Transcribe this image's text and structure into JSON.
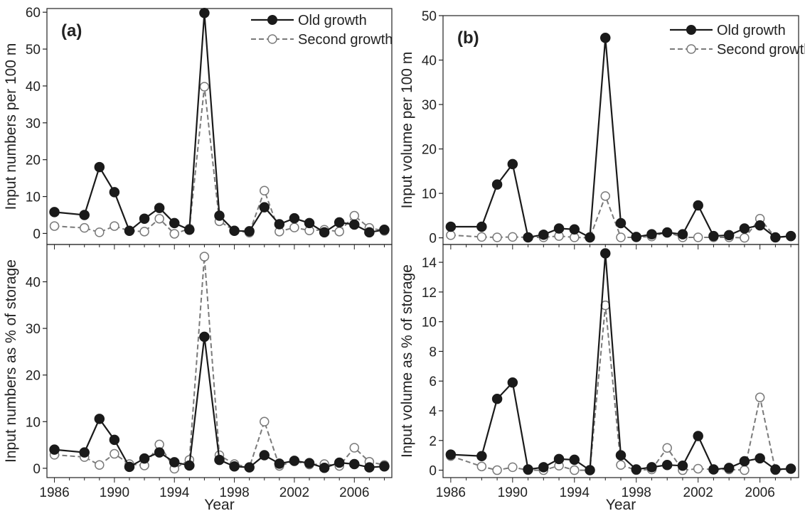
{
  "legend": {
    "old": "Old growth",
    "second": "Second growth"
  },
  "colors": {
    "old": "#1a1a1a",
    "second": "#7a7a7a",
    "second_fill": "#ffffff",
    "axis": "#222222"
  },
  "chart_data": [
    {
      "type": "line",
      "panel_label": "(a)",
      "ylabel": "Input numbers per 100 m",
      "xlabel": "",
      "xlim": [
        1985.5,
        2008.5
      ],
      "ylim": [
        -3,
        61
      ],
      "yticks": [
        0,
        10,
        20,
        30,
        40,
        50,
        60
      ],
      "xticks": [
        1986,
        1990,
        1994,
        1998,
        2002,
        2006
      ],
      "legend_position": "top-right",
      "series": [
        {
          "name": "Old growth",
          "x": [
            1986,
            1988,
            1989,
            1990,
            1991,
            1992,
            1993,
            1994,
            1995,
            1996,
            1997,
            1998,
            1999,
            2000,
            2001,
            2002,
            2003,
            2004,
            2005,
            2006,
            2007,
            2008
          ],
          "y": [
            5.8,
            5.0,
            18.0,
            11.2,
            0.7,
            4.0,
            6.9,
            2.8,
            1.0,
            59.8,
            4.8,
            0.7,
            0.6,
            7.1,
            2.5,
            4.1,
            2.8,
            0.3,
            3.0,
            2.4,
            0.3,
            1.0
          ]
        },
        {
          "name": "Second growth",
          "x": [
            1986,
            1988,
            1989,
            1990,
            1991,
            1992,
            1993,
            1994,
            1995,
            1996,
            1997,
            1998,
            1999,
            2000,
            2001,
            2002,
            2003,
            2004,
            2005,
            2006,
            2007,
            2008
          ],
          "y": [
            2.0,
            1.5,
            0.3,
            2.0,
            0.7,
            0.5,
            4.0,
            -0.1,
            1.3,
            39.8,
            3.3,
            0.8,
            0.2,
            11.6,
            0.5,
            1.6,
            0.8,
            1.0,
            0.5,
            4.8,
            1.5,
            0.7
          ]
        }
      ]
    },
    {
      "type": "line",
      "panel_label": "(b)",
      "ylabel": "Input volume per 100 m",
      "xlabel": "",
      "xlim": [
        1985.5,
        2008.5
      ],
      "ylim": [
        -1.5,
        50
      ],
      "yticks": [
        0,
        10,
        20,
        30,
        40,
        50
      ],
      "xticks": [
        1986,
        1990,
        1994,
        1998,
        2002,
        2006
      ],
      "legend_position": "top-right",
      "series": [
        {
          "name": "Old growth",
          "x": [
            1986,
            1988,
            1989,
            1990,
            1991,
            1992,
            1993,
            1994,
            1995,
            1996,
            1997,
            1998,
            1999,
            2000,
            2001,
            2002,
            2003,
            2004,
            2005,
            2006,
            2007,
            2008
          ],
          "y": [
            2.5,
            2.5,
            12.0,
            16.6,
            0.1,
            0.7,
            2.1,
            1.9,
            0.1,
            45.0,
            3.3,
            0.2,
            0.8,
            1.2,
            0.8,
            7.3,
            0.4,
            0.6,
            2.1,
            2.8,
            0.1,
            0.4
          ]
        },
        {
          "name": "Second growth",
          "x": [
            1986,
            1988,
            1989,
            1990,
            1991,
            1992,
            1993,
            1994,
            1995,
            1996,
            1997,
            1998,
            1999,
            2000,
            2001,
            2002,
            2003,
            2004,
            2005,
            2006,
            2007,
            2008
          ],
          "y": [
            0.6,
            0.2,
            0.1,
            0.2,
            0.1,
            0.1,
            0.4,
            0.1,
            0.0,
            9.4,
            0.1,
            0.1,
            0.3,
            1.3,
            0.1,
            0.1,
            0.1,
            0.1,
            0.0,
            4.3,
            0.1,
            0.3
          ]
        }
      ]
    },
    {
      "type": "line",
      "panel_label": "",
      "ylabel": "Input numbers as % of storage",
      "xlabel": "Year",
      "xlim": [
        1985.5,
        2008.5
      ],
      "ylim": [
        -2,
        48
      ],
      "yticks": [
        0,
        10,
        20,
        30,
        40
      ],
      "xticks": [
        1986,
        1990,
        1994,
        1998,
        2002,
        2006
      ],
      "series": [
        {
          "name": "Old growth",
          "x": [
            1986,
            1988,
            1989,
            1990,
            1991,
            1992,
            1993,
            1994,
            1995,
            1996,
            1997,
            1998,
            1999,
            2000,
            2001,
            2002,
            2003,
            2004,
            2005,
            2006,
            2007,
            2008
          ],
          "y": [
            4.0,
            3.4,
            10.6,
            6.1,
            0.3,
            2.1,
            3.4,
            1.3,
            0.6,
            28.2,
            1.8,
            0.4,
            0.2,
            2.8,
            1.0,
            1.6,
            1.1,
            0.1,
            1.2,
            0.9,
            0.2,
            0.4
          ]
        },
        {
          "name": "Second growth",
          "x": [
            1986,
            1988,
            1989,
            1990,
            1991,
            1992,
            1993,
            1994,
            1995,
            1996,
            1997,
            1998,
            1999,
            2000,
            2001,
            2002,
            2003,
            2004,
            2005,
            2006,
            2007,
            2008
          ],
          "y": [
            2.9,
            2.4,
            0.7,
            3.1,
            0.9,
            0.6,
            5.1,
            -0.1,
            1.8,
            45.4,
            2.8,
            0.9,
            0.2,
            10.0,
            0.5,
            1.5,
            0.8,
            0.9,
            0.5,
            4.4,
            1.4,
            0.7
          ]
        }
      ]
    },
    {
      "type": "line",
      "panel_label": "",
      "ylabel": "Input volume as % of storage",
      "xlabel": "Year",
      "xlim": [
        1985.5,
        2008.5
      ],
      "ylim": [
        -0.5,
        15.2
      ],
      "yticks": [
        0,
        2,
        4,
        6,
        8,
        10,
        12,
        14
      ],
      "xticks": [
        1986,
        1990,
        1994,
        1998,
        2002,
        2006
      ],
      "series": [
        {
          "name": "Old growth",
          "x": [
            1986,
            1988,
            1989,
            1990,
            1991,
            1992,
            1993,
            1994,
            1995,
            1996,
            1997,
            1998,
            1999,
            2000,
            2001,
            2002,
            2003,
            2004,
            2005,
            2006,
            2007,
            2008
          ],
          "y": [
            1.05,
            0.95,
            4.8,
            5.9,
            0.05,
            0.2,
            0.75,
            0.7,
            0.0,
            14.6,
            1.0,
            0.05,
            0.2,
            0.35,
            0.3,
            2.3,
            0.05,
            0.15,
            0.6,
            0.8,
            0.05,
            0.1
          ]
        },
        {
          "name": "Second growth",
          "x": [
            1986,
            1988,
            1989,
            1990,
            1991,
            1992,
            1993,
            1994,
            1995,
            1996,
            1997,
            1998,
            1999,
            2000,
            2001,
            2002,
            2003,
            2004,
            2005,
            2006,
            2007,
            2008
          ],
          "y": [
            0.95,
            0.25,
            0.0,
            0.2,
            0.0,
            0.0,
            0.3,
            0.0,
            0.0,
            11.1,
            0.35,
            0.0,
            0.05,
            1.5,
            0.0,
            0.1,
            0.05,
            0.05,
            0.0,
            4.9,
            0.0,
            0.1
          ]
        }
      ]
    }
  ]
}
